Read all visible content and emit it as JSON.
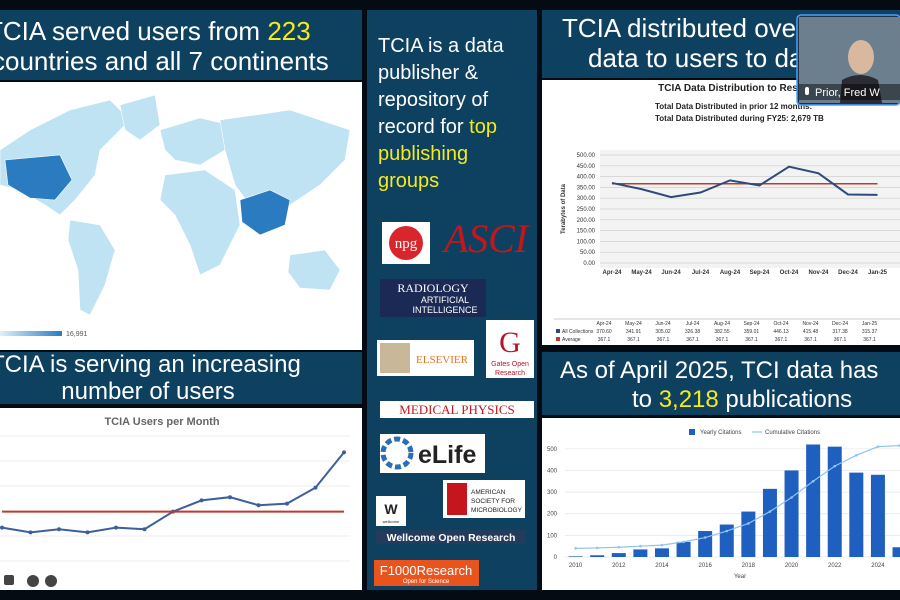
{
  "slide": {
    "map_heading": {
      "line1": "TCIA served users from ",
      "highlight": "223",
      "line2": "countries and all 7 continents",
      "legend_max": "16,991"
    },
    "users_heading": {
      "line1": "TCIA is serving an increasing",
      "line2": "number of users"
    },
    "publisher": {
      "line1": "TCIA is a data",
      "line2": "publisher &",
      "line3": "repository of",
      "line4": "record for ",
      "highlight1": "top",
      "highlight2": "publishing",
      "highlight3": "groups"
    },
    "logos": {
      "npg": "npg",
      "asci": "ASCI",
      "radiology": "RADIOLOGY",
      "radiology_sub1": "ARTIFICIAL",
      "radiology_sub2": "INTELLIGENCE",
      "elsevier": "ELSEVIER",
      "gates_letter": "G",
      "gates1": "Gates Open",
      "gates2": "Research",
      "medical_physics": "MEDICAL PHYSICS",
      "elife": "eLife",
      "wellcome": "W",
      "wellcome_small": "wellcome",
      "asm1": "AMERICAN",
      "asm2": "SOCIETY FOR",
      "asm3": "MICROBIOLOGY",
      "wellcome_open": "Wellcome Open Research",
      "f1000": "F1000Research",
      "f1000_sub": "Open for Science"
    },
    "distribution_heading": {
      "line1": "TCIA distributed ove",
      "line2": "data to users to da"
    },
    "publications_heading": {
      "line1": "As of April 2025, TCI data has",
      "line2_start": "to ",
      "highlight": "3,218",
      "line2_end": " publications"
    },
    "video": {
      "name": "Prior, Fred W"
    }
  },
  "chart_data": [
    {
      "type": "line",
      "title": "TCIA Users per Month",
      "ylim": [
        0,
        100
      ],
      "series": [
        {
          "color": "#3d5f9c",
          "values": [
            39,
            36,
            38,
            36,
            39,
            38,
            49,
            56,
            58,
            53,
            54,
            64,
            86
          ]
        },
        {
          "color": "#c0392b",
          "values": [
            49,
            49,
            49,
            49,
            49,
            49,
            49,
            49,
            49,
            49,
            49,
            49,
            49
          ]
        }
      ]
    },
    {
      "type": "line",
      "title": "TCIA Data Distribution to Res",
      "subtitle": [
        "Total Data Distributed in prior 12 months:",
        "Total Data Distributed during FY25: 2,679 TB"
      ],
      "y_label": "Terabytes of Data",
      "categories": [
        "Apr-24",
        "May-24",
        "Jun-24",
        "Jul-24",
        "Aug-24",
        "Sep-24",
        "Oct-24",
        "Nov-24",
        "Dec-24",
        "Jan-25"
      ],
      "series": [
        {
          "name": "All Collections",
          "color": "#2e4a7a",
          "values": [
            370.6,
            341.91,
            305.02,
            326.38,
            382.55,
            359.01,
            446.13,
            415.48,
            317.38,
            315.37
          ],
          "value_labels": [
            "370.60",
            "341.91",
            "305.02",
            "326.38",
            "382.55",
            "359.01",
            "446.13",
            "415.48",
            "317.38",
            "315.37"
          ]
        },
        {
          "name": "Average",
          "color": "#c0392b",
          "values": [
            367.1,
            367.1,
            367.1,
            367.1,
            367.1,
            367.1,
            367.1,
            367.1,
            367.1,
            367.1
          ]
        }
      ],
      "ylim": [
        0,
        500
      ],
      "yticks": [
        {
          "value": 0,
          "label": "0.00"
        },
        {
          "value": 50,
          "label": "50.00"
        },
        {
          "value": 100,
          "label": "100.00"
        },
        {
          "value": 150,
          "label": "150.00"
        },
        {
          "value": 200,
          "label": "200.00"
        },
        {
          "value": 250,
          "label": "250.00"
        },
        {
          "value": 300,
          "label": "300.00"
        },
        {
          "value": 350,
          "label": "350.00"
        },
        {
          "value": 400,
          "label": "400.00"
        },
        {
          "value": 450,
          "label": "450.00"
        },
        {
          "value": 500,
          "label": "500.00"
        }
      ],
      "grid": true
    },
    {
      "type": "bar",
      "x_label": "Year",
      "x": [
        2010,
        2011,
        2012,
        2013,
        2014,
        2015,
        2016,
        2017,
        2018,
        2019,
        2020,
        2021,
        2022,
        2023,
        2024,
        2025
      ],
      "series": [
        {
          "name": "Yearly Citations",
          "color": "#1f5fbf",
          "values": [
            3,
            8,
            18,
            35,
            40,
            70,
            120,
            150,
            210,
            315,
            400,
            520,
            510,
            390,
            380,
            45
          ]
        },
        {
          "name": "Cumulative Citations",
          "color": "#8fc3f0",
          "type": "line",
          "values": [
            40,
            42,
            45,
            50,
            55,
            70,
            90,
            120,
            155,
            210,
            275,
            350,
            420,
            470,
            510,
            515
          ]
        }
      ],
      "xlim": [
        2009,
        2025.3
      ],
      "xticks": [
        2010,
        2012,
        2014,
        2016,
        2018,
        2020,
        2022,
        2024
      ],
      "ylim": [
        0,
        550
      ],
      "yticks": [
        0,
        100,
        200,
        300,
        400,
        500
      ],
      "grid": true,
      "legend": "top"
    }
  ]
}
